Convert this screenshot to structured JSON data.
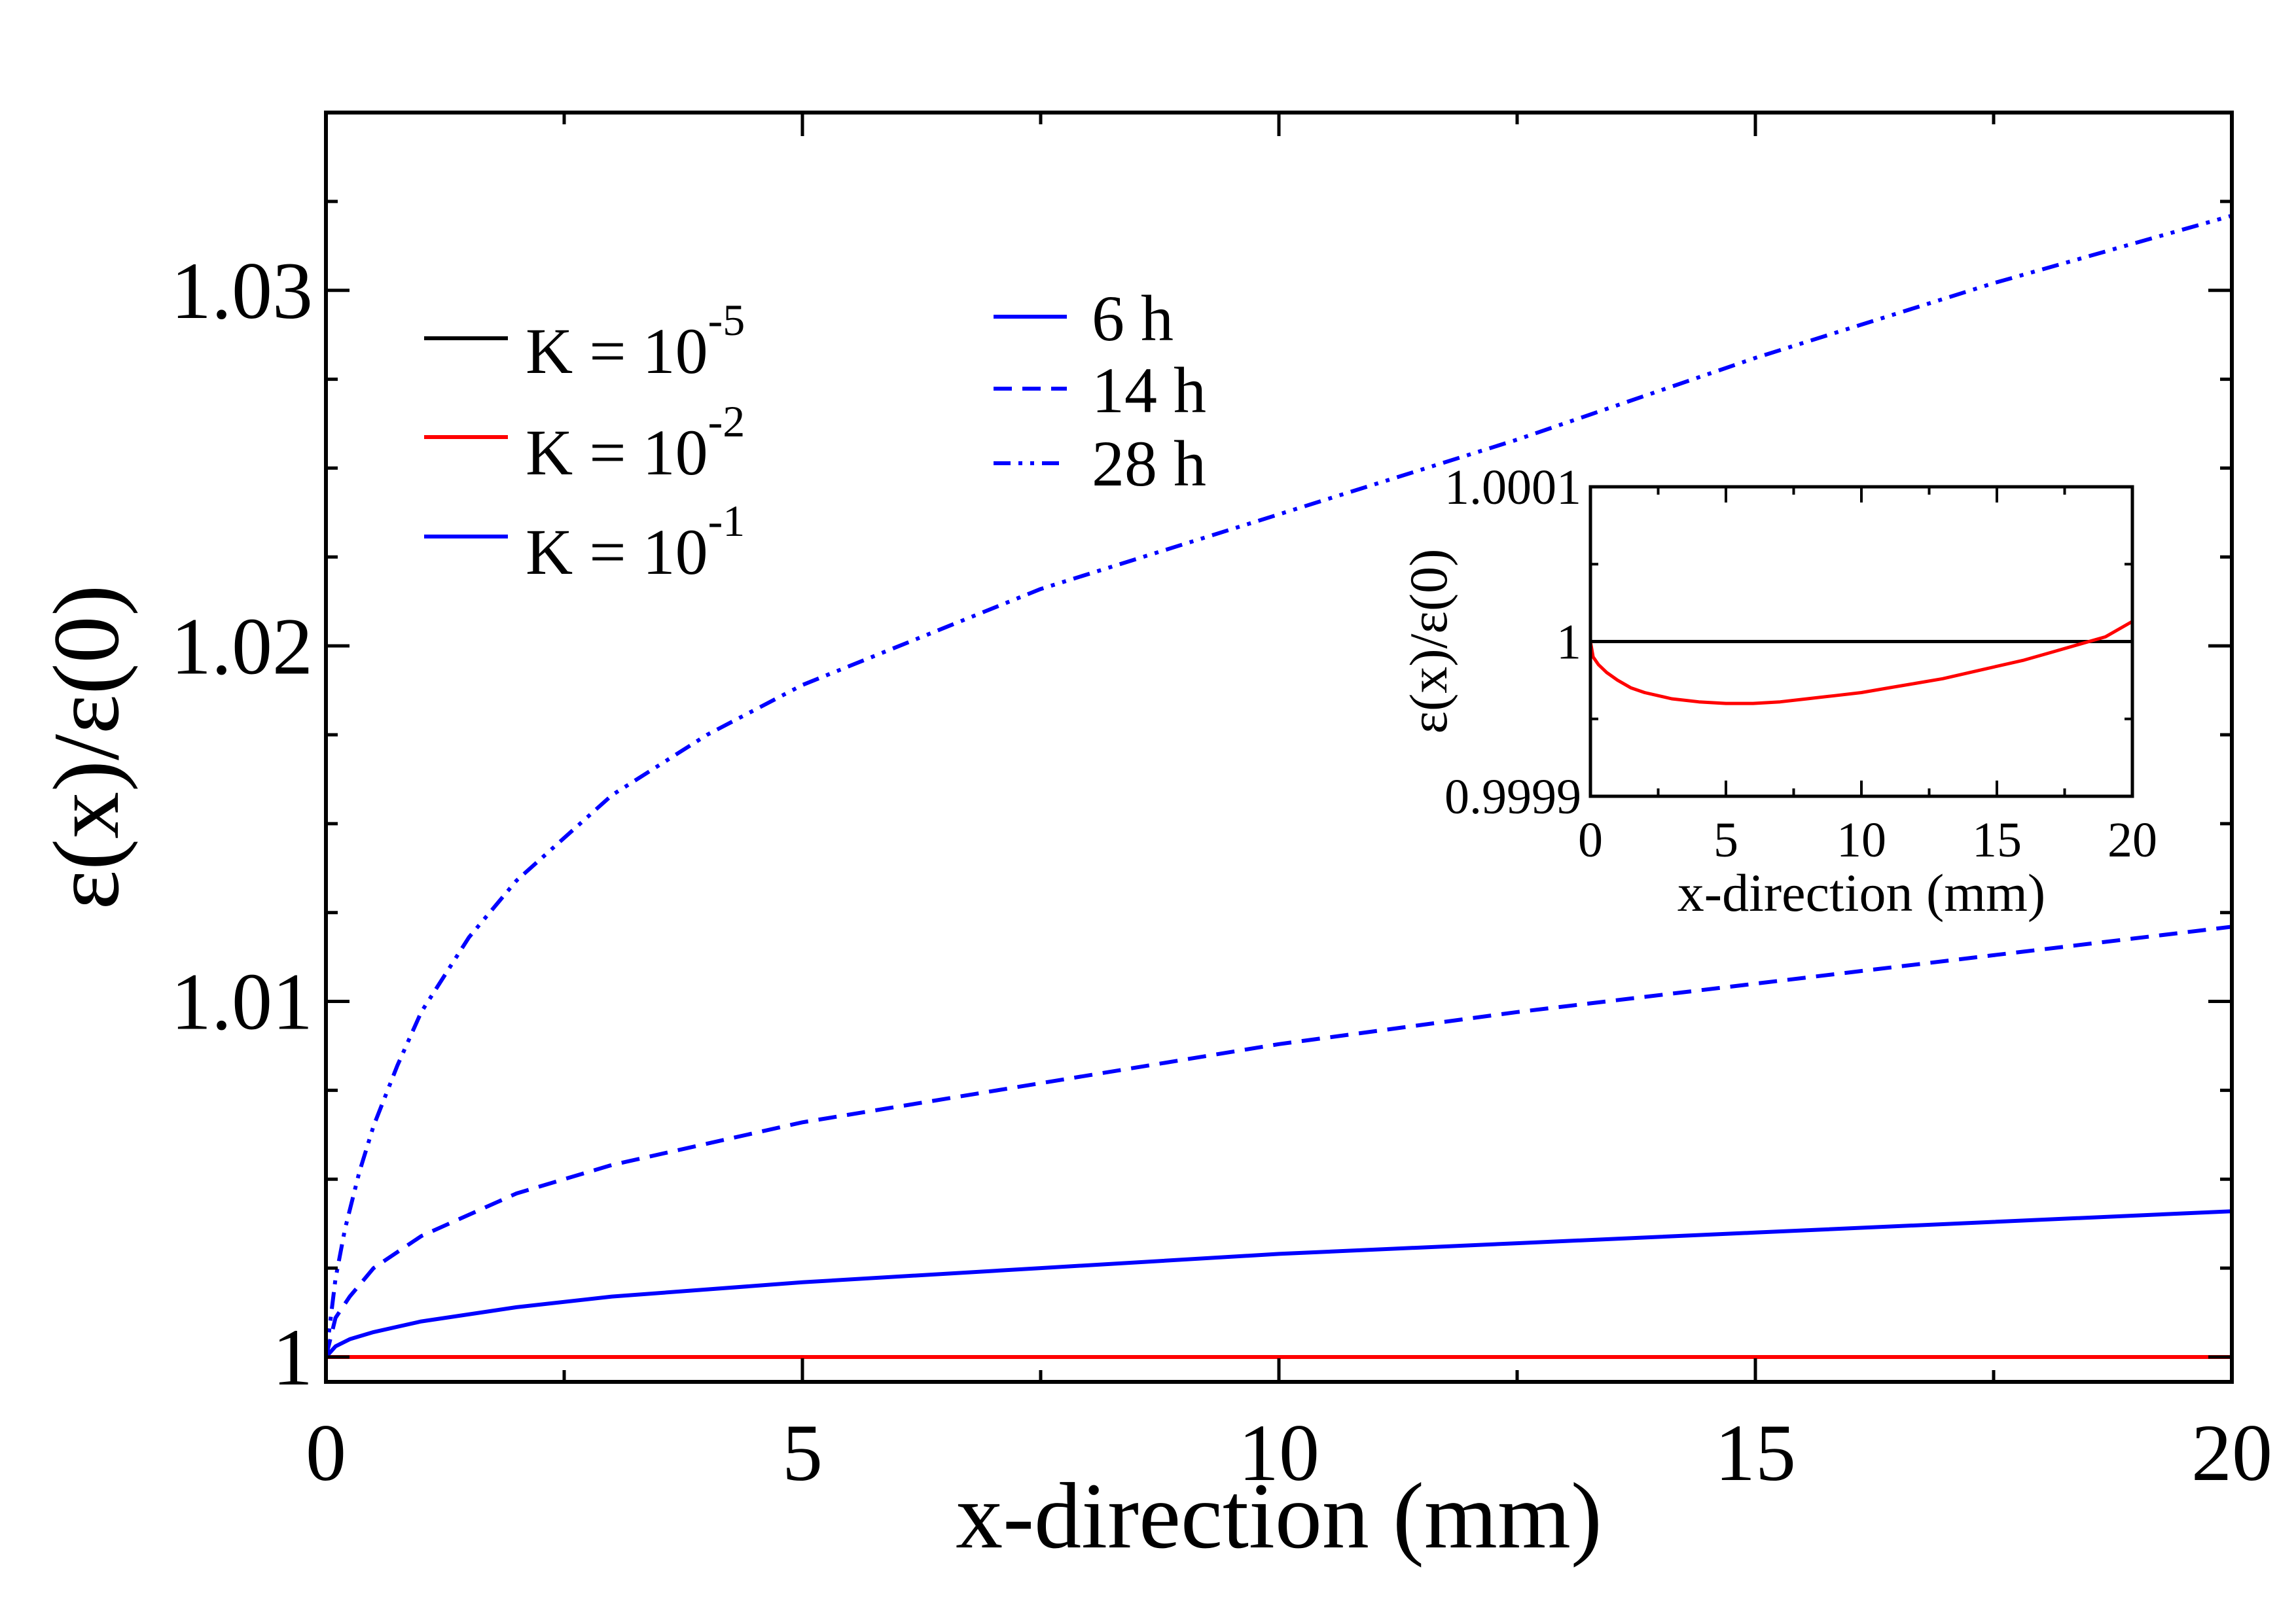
{
  "chart_data": [
    {
      "type": "line",
      "title": "",
      "xlabel": "x-direction (mm)",
      "ylabel": "ε(x)/ε(0)",
      "xlim": [
        0,
        20
      ],
      "ylim": [
        0.9993,
        1.035
      ],
      "xticks": [
        0,
        5,
        10,
        15,
        20
      ],
      "xtick_labels": [
        "0",
        "5",
        "10",
        "15",
        "20"
      ],
      "yticks": [
        1.0,
        1.01,
        1.02,
        1.03
      ],
      "ytick_labels": [
        "1",
        "1.01",
        "1.02",
        "1.03"
      ],
      "grid": false,
      "legend_position": "top-left",
      "legend_k": [
        {
          "base": "K = 10",
          "exp": "-5",
          "color": "#000000"
        },
        {
          "base": "K = 10",
          "exp": "-2",
          "color": "#ff0000"
        },
        {
          "base": "K = 10",
          "exp": "-1",
          "color": "#0000ff"
        }
      ],
      "legend_time": [
        {
          "label": "6 h",
          "style": "solid",
          "color": "#0000ff"
        },
        {
          "label": "14 h",
          "style": "dashed",
          "color": "#0000ff"
        },
        {
          "label": "28 h",
          "style": "dash-dot-dot",
          "color": "#0000ff"
        }
      ],
      "series": [
        {
          "name": "K = 10^-5",
          "color": "#000000",
          "style": "solid",
          "x": [
            0,
            5,
            10,
            15,
            20
          ],
          "y": [
            1.0,
            1.0,
            1.0,
            1.0,
            1.0
          ]
        },
        {
          "name": "K = 10^-2",
          "color": "#ff0000",
          "style": "solid",
          "x": [
            0,
            5,
            10,
            15,
            20
          ],
          "y": [
            1.0,
            1.0,
            1.0,
            1.0,
            1.0
          ]
        },
        {
          "name": "K = 10^-1, 6 h",
          "color": "#0000ff",
          "style": "solid",
          "x": [
            0,
            0.1,
            0.25,
            0.5,
            1,
            2,
            3,
            5,
            7.5,
            10,
            12.5,
            15,
            17.5,
            20
          ],
          "y": [
            1.0,
            1.0003,
            1.0005,
            1.0007,
            1.001,
            1.0014,
            1.0017,
            1.0021,
            1.0025,
            1.0029,
            1.0032,
            1.0035,
            1.0038,
            1.0041
          ]
        },
        {
          "name": "K = 10^-1, 14 h",
          "color": "#0000ff",
          "style": "dashed",
          "x": [
            0,
            0.1,
            0.25,
            0.5,
            1,
            2,
            3,
            5,
            7.5,
            10,
            12.5,
            15,
            17.5,
            20
          ],
          "y": [
            1.0,
            1.0011,
            1.0017,
            1.0025,
            1.0034,
            1.0046,
            1.0054,
            1.0066,
            1.0077,
            1.0088,
            1.0097,
            1.0105,
            1.0113,
            1.0121
          ]
        },
        {
          "name": "K = 10^-1, 28 h",
          "color": "#0000ff",
          "style": "dash-dot-dot",
          "x": [
            0,
            0.1,
            0.2,
            0.35,
            0.5,
            0.75,
            1,
            1.5,
            2,
            3,
            4,
            5,
            7.5,
            10,
            12.5,
            15,
            17.5,
            20
          ],
          "y": [
            1.0,
            1.0022,
            1.0036,
            1.0052,
            1.0065,
            1.0082,
            1.0097,
            1.0118,
            1.0134,
            1.0158,
            1.0175,
            1.0189,
            1.0216,
            1.0237,
            1.0258,
            1.0281,
            1.0302,
            1.0321
          ]
        }
      ]
    },
    {
      "type": "line",
      "title": "",
      "xlabel": "x-direction (mm)",
      "ylabel": "ε(x)/ε(0)",
      "xlim": [
        0,
        20
      ],
      "ylim": [
        0.9999,
        1.0001
      ],
      "xticks": [
        0,
        5,
        10,
        15,
        20
      ],
      "xtick_labels": [
        "0",
        "5",
        "10",
        "15",
        "20"
      ],
      "yticks": [
        0.9999,
        1.0,
        1.0001
      ],
      "ytick_labels": [
        "0.9999",
        "1",
        "1.0001"
      ],
      "grid": false,
      "series": [
        {
          "name": "K = 10^-5",
          "color": "#000000",
          "style": "solid",
          "x": [
            0,
            20
          ],
          "y": [
            1.0,
            1.0
          ]
        },
        {
          "name": "K = 10^-2",
          "color": "#ff0000",
          "style": "solid",
          "x": [
            0,
            0.1,
            0.3,
            0.6,
            1,
            1.5,
            2,
            3,
            4,
            5,
            6,
            7,
            8,
            9,
            10,
            11,
            12,
            13,
            14,
            15,
            16,
            17,
            18,
            19,
            20
          ],
          "y": [
            1.0,
            0.99999,
            0.999985,
            0.99998,
            0.999975,
            0.99997,
            0.999967,
            0.999963,
            0.999961,
            0.99996,
            0.99996,
            0.999961,
            0.999963,
            0.999965,
            0.999967,
            0.99997,
            0.999973,
            0.999976,
            0.99998,
            0.999984,
            0.999988,
            0.999993,
            0.999998,
            1.000003,
            1.000013
          ]
        }
      ]
    }
  ]
}
